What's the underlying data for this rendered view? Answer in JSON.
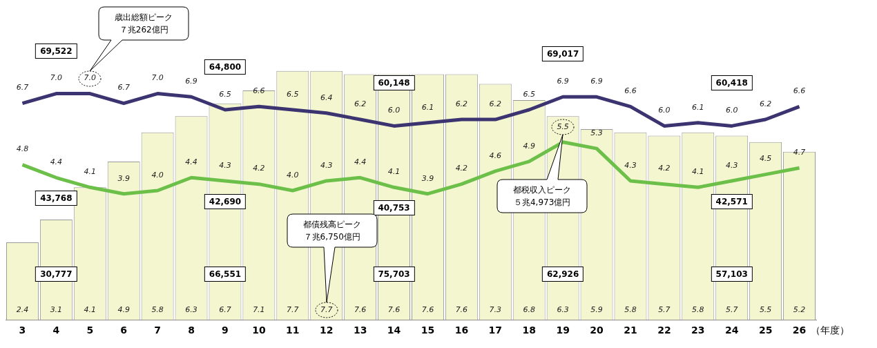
{
  "chart_data": {
    "type": "bar",
    "xlabel": "（年度）",
    "categories": [
      "3",
      "4",
      "5",
      "6",
      "7",
      "8",
      "9",
      "10",
      "11",
      "12",
      "13",
      "14",
      "15",
      "16",
      "17",
      "18",
      "19",
      "20",
      "21",
      "22",
      "23",
      "24",
      "25",
      "26"
    ],
    "series": [
      {
        "color": "#f4f6cf",
        "values": [
          2.4,
          3.1,
          4.1,
          4.9,
          5.8,
          6.3,
          6.7,
          7.1,
          7.7,
          7.7,
          7.6,
          7.6,
          7.6,
          7.6,
          7.3,
          6.8,
          6.3,
          5.9,
          5.8,
          5.7,
          5.8,
          5.7,
          5.5,
          5.2
        ],
        "value_labels": [
          "2.4",
          "3.1",
          "4.1",
          "4.9",
          "5.8",
          "6.3",
          "6.7",
          "7.1",
          "7.7",
          "7.7",
          "7.6",
          "7.6",
          "7.6",
          "7.6",
          "7.3",
          "6.8",
          "6.3",
          "5.9",
          "5.8",
          "5.7",
          "5.8",
          "5.7",
          "5.5",
          "5.2"
        ]
      },
      {
        "type": "line",
        "color": "#3b3471",
        "values": [
          6.7,
          7.0,
          7.0,
          6.7,
          7.0,
          6.9,
          6.5,
          6.6,
          6.5,
          6.4,
          6.2,
          6.0,
          6.1,
          6.2,
          6.2,
          6.5,
          6.9,
          6.9,
          6.6,
          6.0,
          6.1,
          6.0,
          6.2,
          6.6
        ],
        "value_labels": [
          "6.7",
          "7.0",
          "7.0",
          "6.7",
          "7.0",
          "6.9",
          "6.5",
          "6.6",
          "6.5",
          "6.4",
          "6.2",
          "6.0",
          "6.1",
          "6.2",
          "6.2",
          "6.5",
          "6.9",
          "6.9",
          "6.6",
          "6.0",
          "6.1",
          "6.0",
          "6.2",
          "6.6"
        ]
      },
      {
        "type": "line",
        "color": "#6cc04a",
        "values": [
          4.8,
          4.4,
          4.1,
          3.9,
          4.0,
          4.4,
          4.3,
          4.2,
          4.0,
          4.3,
          4.4,
          4.1,
          3.9,
          4.2,
          4.6,
          4.9,
          5.5,
          5.3,
          4.3,
          4.2,
          4.1,
          4.3,
          4.5,
          4.7
        ],
        "value_labels": [
          "4.8",
          "4.4",
          "4.1",
          "3.9",
          "4.0",
          "4.4",
          "4.3",
          "4.2",
          "4.0",
          "4.3",
          "4.4",
          "4.1",
          "3.9",
          "4.2",
          "4.6",
          "4.9",
          "5.5",
          "5.3",
          "4.3",
          "4.2",
          "4.1",
          "4.3",
          "4.5",
          "4.7"
        ]
      }
    ],
    "marker": "none",
    "grid": false,
    "legend": false,
    "tick_labels": "x",
    "annotations": [
      "69,522",
      "43,768",
      "30,777",
      "64,800",
      "42,690",
      "66,551",
      "60,148",
      "40,753",
      "75,703",
      "69,017",
      "62,926",
      "60,418",
      "42,571",
      "57,103",
      "歳出総額ピーク７兆262億円",
      "都債残高ピーク７兆6,750億円",
      "都税収入ピーク５兆4,973億円"
    ]
  }
}
